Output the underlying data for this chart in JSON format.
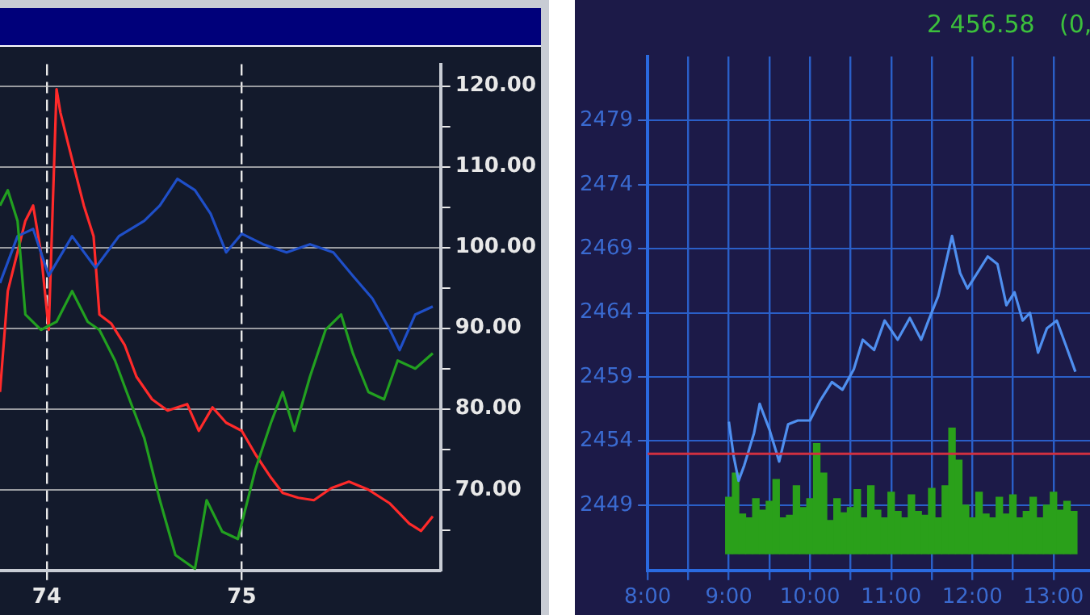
{
  "chart_data": [
    {
      "type": "line",
      "xlim": [
        73.76,
        76.02
      ],
      "ylim": [
        60,
        122.7
      ],
      "xticks": [
        74,
        75
      ],
      "yticks": [
        {
          "value": 65,
          "label": null
        },
        {
          "value": 70,
          "label": "70.00"
        },
        {
          "value": 75,
          "label": null
        },
        {
          "value": 80,
          "label": "80.00"
        },
        {
          "value": 85,
          "label": null
        },
        {
          "value": 90,
          "label": "90.00"
        },
        {
          "value": 95,
          "label": null
        },
        {
          "value": 100,
          "label": "100.00"
        },
        {
          "value": 105,
          "label": null
        },
        {
          "value": 110,
          "label": "110.00"
        },
        {
          "value": 115,
          "label": null
        },
        {
          "value": 120,
          "label": "120.00"
        }
      ],
      "grid": true,
      "legend": false,
      "marker": "none",
      "series": [
        {
          "color": "#22a020",
          "x": [
            73.76,
            73.8,
            73.85,
            73.89,
            73.97,
            74.05,
            74.13,
            74.21,
            74.27,
            74.35,
            74.41,
            74.5,
            74.58,
            74.66,
            74.76,
            74.82,
            74.9,
            74.98,
            75.07,
            75.15,
            75.21,
            75.27,
            75.35,
            75.43,
            75.51,
            75.57,
            75.65,
            75.73,
            75.8,
            75.89,
            75.98
          ],
          "values": [
            105.2,
            107.1,
            103.3,
            91.7,
            89.8,
            90.8,
            94.6,
            90.8,
            89.8,
            86.0,
            82.1,
            76.4,
            68.7,
            61.9,
            60.2,
            68.7,
            64.8,
            63.9,
            72.5,
            78.3,
            82.1,
            77.3,
            84.0,
            89.8,
            91.7,
            86.9,
            82.1,
            81.2,
            86.0,
            85.0,
            86.9
          ]
        },
        {
          "color": "#1f4fc8",
          "x": [
            73.76,
            73.85,
            73.93,
            74.01,
            74.13,
            74.25,
            74.37,
            74.5,
            74.58,
            74.67,
            74.76,
            74.84,
            74.92,
            75.0,
            75.11,
            75.23,
            75.35,
            75.47,
            75.57,
            75.67,
            75.76,
            75.81,
            75.89,
            75.98
          ],
          "values": [
            95.6,
            101.4,
            102.3,
            96.5,
            101.4,
            97.5,
            101.4,
            103.3,
            105.2,
            108.5,
            107.1,
            104.2,
            99.4,
            101.7,
            100.4,
            99.4,
            100.4,
            99.4,
            96.5,
            93.7,
            89.8,
            87.3,
            91.7,
            92.7
          ]
        },
        {
          "color": "#ff2a2a",
          "x": [
            73.76,
            73.8,
            73.89,
            73.93,
            73.97,
            74.01,
            74.05,
            74.07,
            74.11,
            74.15,
            74.19,
            74.24,
            74.27,
            74.33,
            74.4,
            74.46,
            74.54,
            74.62,
            74.72,
            74.78,
            74.85,
            74.92,
            75.0,
            75.07,
            75.15,
            75.21,
            75.29,
            75.37,
            75.46,
            75.55,
            75.65,
            75.76,
            75.86,
            75.92,
            75.98
          ],
          "values": [
            82.1,
            94.6,
            103.3,
            105.2,
            99.4,
            89.8,
            119.6,
            116.7,
            112.8,
            109.0,
            105.2,
            101.4,
            91.7,
            90.6,
            87.9,
            84.0,
            81.2,
            79.8,
            80.6,
            77.3,
            80.2,
            78.3,
            77.3,
            74.4,
            71.5,
            69.6,
            69.0,
            68.7,
            70.2,
            71.0,
            70.0,
            68.3,
            65.8,
            64.9,
            66.7
          ]
        }
      ]
    },
    {
      "type": "line",
      "title": "2 456.58",
      "annotations": [
        "(0,"
      ],
      "xlim": [
        8,
        13.45
      ],
      "ylim": [
        2443.9,
        2484
      ],
      "xticks": [
        {
          "value": 8,
          "label": "8:00"
        },
        {
          "value": 8.5,
          "label": null
        },
        {
          "value": 9,
          "label": "9:00"
        },
        {
          "value": 9.5,
          "label": null
        },
        {
          "value": 10,
          "label": "10:00"
        },
        {
          "value": 10.5,
          "label": null
        },
        {
          "value": 11,
          "label": "11:00"
        },
        {
          "value": 11.5,
          "label": null
        },
        {
          "value": 12,
          "label": "12:00"
        },
        {
          "value": 12.5,
          "label": null
        },
        {
          "value": 13,
          "label": "13:00"
        }
      ],
      "yticks": [
        2449,
        2454,
        2459,
        2464,
        2469,
        2474,
        2479
      ],
      "grid": true,
      "legend": false,
      "marker": "none",
      "ref_lines": [
        {
          "axis": "y",
          "value": 2453,
          "color": "#d03040"
        }
      ],
      "series": [
        {
          "type": "bar",
          "color": "#2aa01a",
          "x": [
            9.0,
            9.083,
            9.167,
            9.25,
            9.333,
            9.417,
            9.5,
            9.583,
            9.667,
            9.75,
            9.833,
            9.917,
            10.0,
            10.083,
            10.167,
            10.25,
            10.333,
            10.417,
            10.5,
            10.583,
            10.667,
            10.75,
            10.833,
            10.917,
            11.0,
            11.083,
            11.167,
            11.25,
            11.333,
            11.417,
            11.5,
            11.583,
            11.667,
            11.75,
            11.833,
            11.917,
            12.0,
            12.083,
            12.167,
            12.25,
            12.333,
            12.417,
            12.5,
            12.583,
            12.667,
            12.75,
            12.833,
            12.917,
            13.0,
            13.083,
            13.167,
            13.25
          ],
          "base": [
            2445.2,
            2445.2,
            2445.2,
            2445.2,
            2445.2,
            2445.2,
            2445.2,
            2445.2,
            2445.2,
            2445.2,
            2445.2,
            2445.2,
            2445.2,
            2445.2,
            2445.2,
            2445.2,
            2445.2,
            2445.2,
            2445.2,
            2445.2,
            2445.2,
            2445.2,
            2445.2,
            2445.2,
            2445.2,
            2445.2,
            2445.2,
            2445.2,
            2445.2,
            2445.2,
            2445.2,
            2445.2,
            2445.2,
            2445.2,
            2445.2,
            2445.2,
            2445.2,
            2445.2,
            2445.2,
            2445.2,
            2445.2,
            2445.2,
            2445.2,
            2445.2,
            2445.2,
            2445.2,
            2445.2,
            2445.2,
            2445.2,
            2445.2,
            2445.2,
            2445.2
          ],
          "values": [
            4.4,
            6.3,
            3.1,
            2.8,
            4.3,
            3.4,
            4.1,
            5.8,
            2.8,
            3.0,
            5.3,
            3.6,
            4.3,
            8.6,
            6.3,
            2.6,
            4.3,
            3.2,
            3.6,
            5.0,
            2.8,
            5.3,
            3.4,
            2.8,
            4.8,
            3.3,
            2.8,
            4.6,
            3.3,
            3.0,
            5.1,
            2.8,
            5.3,
            9.8,
            7.3,
            3.8,
            2.8,
            4.8,
            3.1,
            2.8,
            4.4,
            3.1,
            4.6,
            2.8,
            3.3,
            4.4,
            2.8,
            3.8,
            4.8,
            3.4,
            4.1,
            3.3
          ]
        },
        {
          "color": "#4f8fef",
          "x": [
            9.0,
            9.06,
            9.12,
            9.19,
            9.31,
            9.38,
            9.5,
            9.62,
            9.73,
            9.85,
            10.0,
            10.12,
            10.27,
            10.4,
            10.54,
            10.65,
            10.79,
            10.92,
            11.08,
            11.23,
            11.37,
            11.46,
            11.58,
            11.75,
            11.85,
            11.94,
            12.04,
            12.19,
            12.31,
            12.42,
            12.52,
            12.62,
            12.71,
            12.81,
            12.92,
            13.04,
            13.15,
            13.27
          ],
          "values": [
            2455.5,
            2452.8,
            2450.9,
            2452.1,
            2454.6,
            2456.9,
            2454.9,
            2452.4,
            2455.3,
            2455.6,
            2455.6,
            2457.1,
            2458.6,
            2458.0,
            2459.6,
            2461.9,
            2461.1,
            2463.4,
            2461.9,
            2463.6,
            2461.9,
            2463.4,
            2465.3,
            2470.0,
            2467.1,
            2465.9,
            2466.9,
            2468.4,
            2467.8,
            2464.6,
            2465.6,
            2463.4,
            2464.0,
            2460.9,
            2462.8,
            2463.4,
            2461.5,
            2459.4
          ]
        }
      ]
    }
  ]
}
